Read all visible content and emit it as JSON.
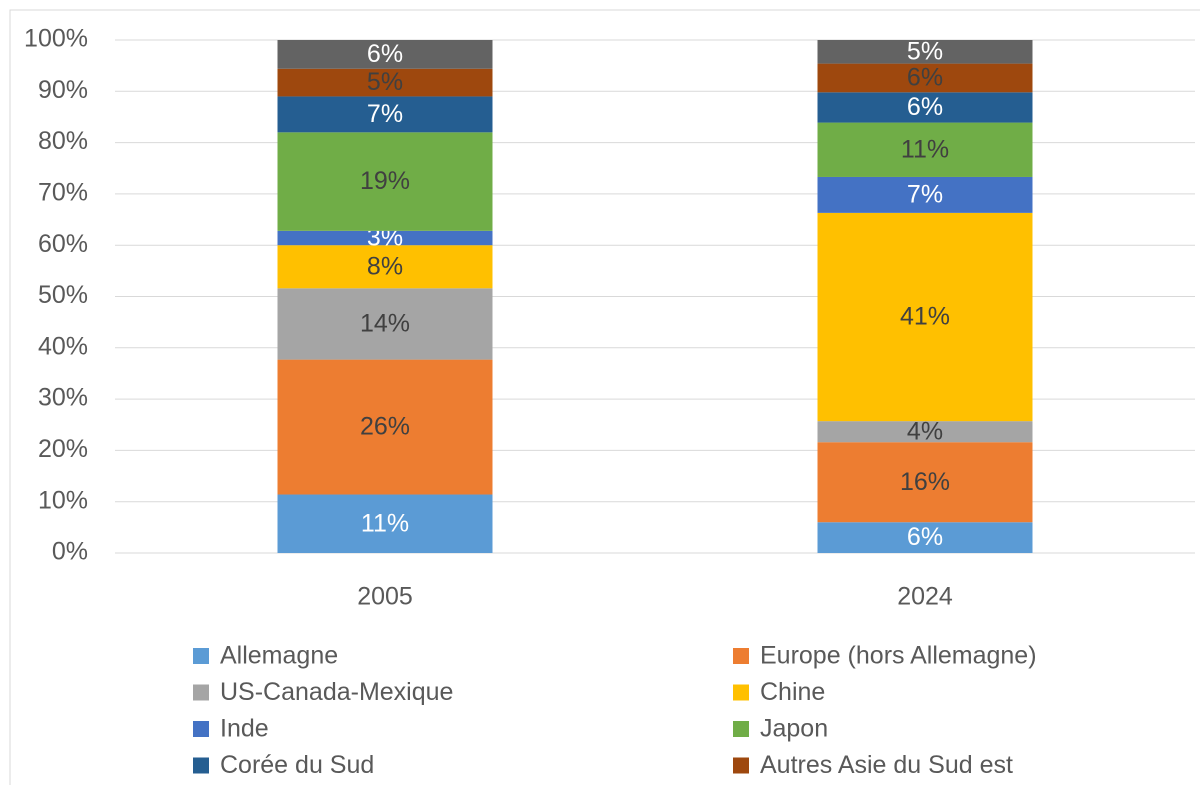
{
  "chart_data": {
    "type": "stacked-bar",
    "categories": [
      "2005",
      "2024"
    ],
    "ylim": [
      0,
      100
    ],
    "yticks": [
      {
        "value": 0,
        "label": "0%"
      },
      {
        "value": 10,
        "label": "10%"
      },
      {
        "value": 20,
        "label": "20%"
      },
      {
        "value": 30,
        "label": "30%"
      },
      {
        "value": 40,
        "label": "40%"
      },
      {
        "value": 50,
        "label": "50%"
      },
      {
        "value": 60,
        "label": "60%"
      },
      {
        "value": 70,
        "label": "70%"
      },
      {
        "value": 80,
        "label": "80%"
      },
      {
        "value": 90,
        "label": "90%"
      },
      {
        "value": 100,
        "label": "100%"
      }
    ],
    "grid": true,
    "legend": "bottom",
    "series": [
      {
        "name": "Allemagne",
        "color": "#5b9bd5",
        "label_color": "#ffffff",
        "values": [
          11.4,
          6.0
        ],
        "value_labels": [
          "11%",
          "6%"
        ]
      },
      {
        "name": "Europe (hors Allemagne)",
        "color": "#ed7d31",
        "label_color": "#404040",
        "values": [
          26.3,
          15.6
        ],
        "value_labels": [
          "26%",
          "16%"
        ]
      },
      {
        "name": "US-Canada-Mexique",
        "color": "#a5a5a5",
        "label_color": "#404040",
        "values": [
          13.9,
          4.1
        ],
        "value_labels": [
          "14%",
          "4%"
        ]
      },
      {
        "name": "Chine",
        "color": "#ffc000",
        "label_color": "#404040",
        "values": [
          8.4,
          40.6
        ],
        "value_labels": [
          "8%",
          "41%"
        ]
      },
      {
        "name": "Inde",
        "color": "#4472c4",
        "label_color": "#ffffff",
        "values": [
          2.8,
          7.0
        ],
        "value_labels": [
          "3%",
          "7%"
        ]
      },
      {
        "name": "Japon",
        "color": "#70ad47",
        "label_color": "#404040",
        "values": [
          19.2,
          10.6
        ],
        "value_labels": [
          "19%",
          "11%"
        ]
      },
      {
        "name": "Corée du Sud",
        "color": "#255e91",
        "label_color": "#ffffff",
        "values": [
          7.0,
          5.9
        ],
        "value_labels": [
          "7%",
          "6%"
        ]
      },
      {
        "name": "Autres Asie du Sud est",
        "color": "#9e480e",
        "label_color": "#404040",
        "values": [
          5.4,
          5.6
        ],
        "value_labels": [
          "5%",
          "6%"
        ]
      },
      {
        "name": null,
        "color": "#636363",
        "label_color": "#ffffff",
        "values": [
          5.6,
          4.6
        ],
        "value_labels": [
          "6%",
          "5%"
        ]
      }
    ]
  }
}
